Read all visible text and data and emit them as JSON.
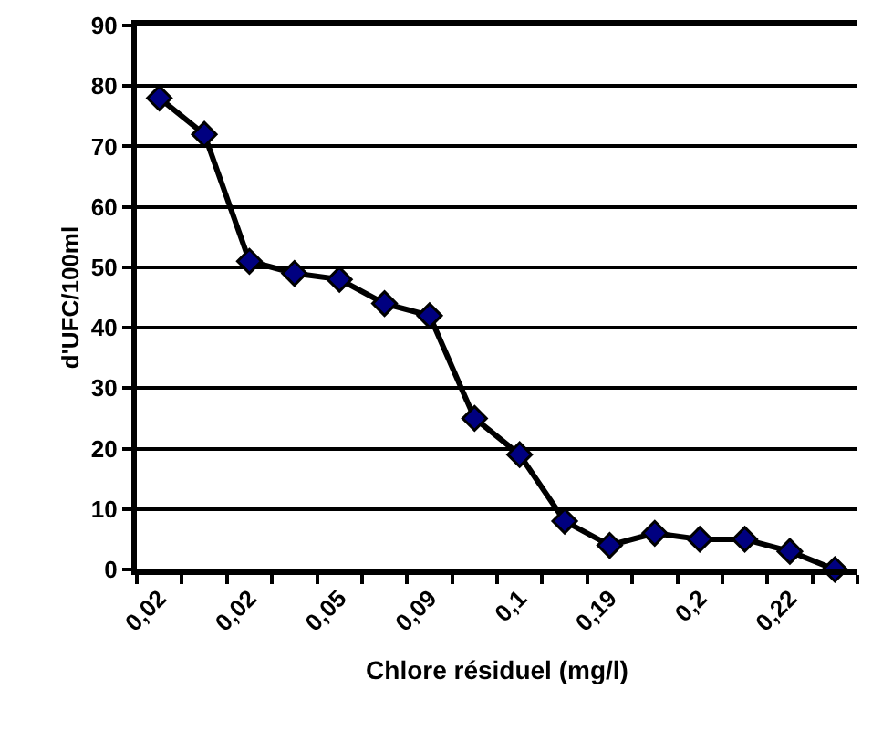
{
  "chart_data": {
    "type": "line",
    "xlabel": "Chlore résiduel (mg/l)",
    "ylabel": "d'UFC/100ml",
    "categories": [
      "0,02",
      null,
      "0,02",
      null,
      "0,05",
      null,
      "0,09",
      null,
      "0,1",
      null,
      "0,19",
      null,
      "0,2",
      null,
      "0,22",
      null
    ],
    "series": [
      {
        "color": "#000080",
        "values": [
          78,
          72,
          51,
          49,
          48,
          44,
          42,
          25,
          19,
          8,
          4,
          6,
          5,
          5,
          3,
          0
        ]
      }
    ],
    "ylim": [
      0,
      90
    ],
    "yticks": [
      0,
      10,
      20,
      30,
      40,
      50,
      60,
      70,
      80,
      90
    ],
    "grid": "y",
    "marker": "diamond",
    "line_style": "solid"
  }
}
